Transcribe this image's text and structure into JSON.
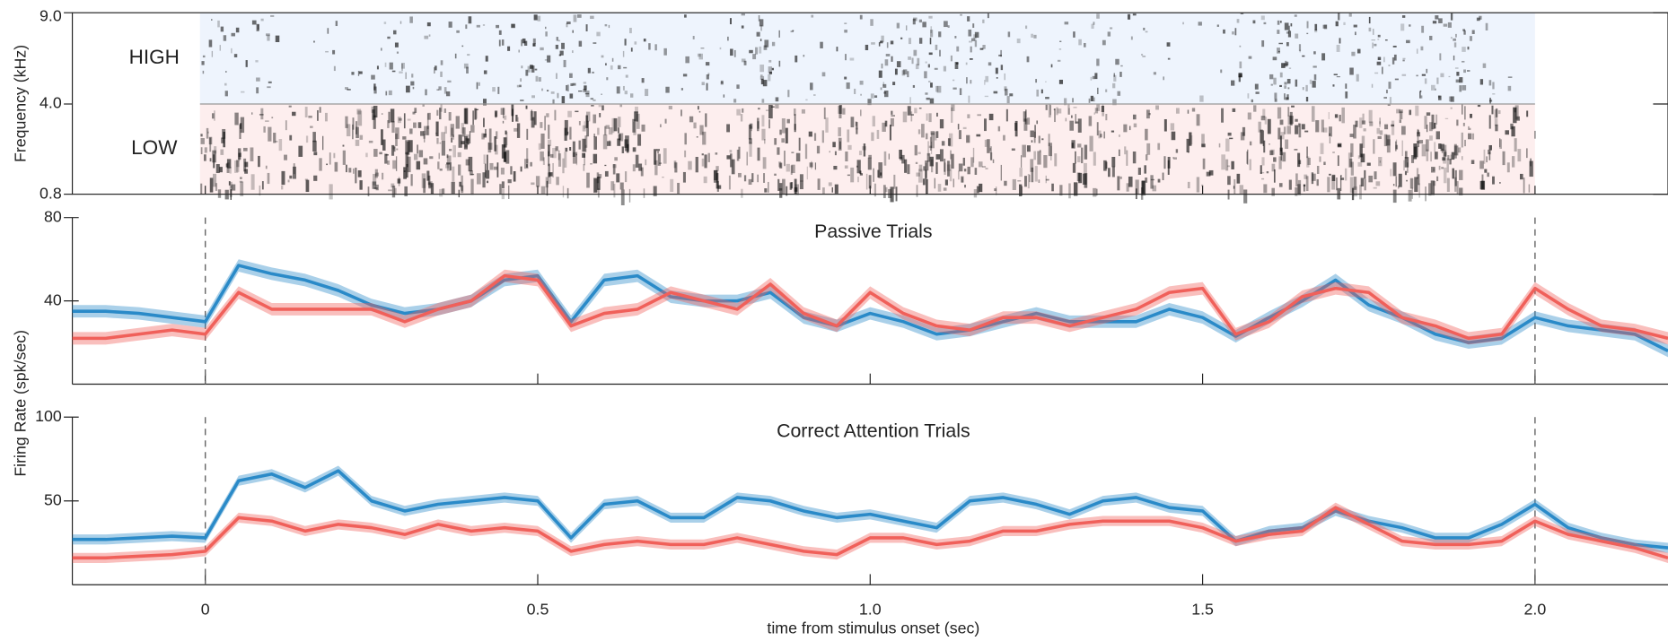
{
  "chart_data": [
    {
      "type": "spectrogram",
      "ylabel": "Frequency (kHz)",
      "yticks": [
        {
          "value": 9,
          "label": "9.0"
        },
        {
          "value": 4,
          "label": "4.0"
        },
        0.8
      ],
      "bands": [
        {
          "name": "HIGH",
          "color": "#1f6fb0",
          "fill": "#eef4fd",
          "range": [
            4,
            9
          ]
        },
        {
          "name": "LOW",
          "color": "#d9342b",
          "fill": "#fdeeee",
          "range": [
            0.8,
            4
          ]
        }
      ]
    },
    {
      "type": "line",
      "title": "Passive Trials",
      "ylim": [
        0,
        80
      ],
      "yticks": [
        80,
        40
      ],
      "series": [
        {
          "color": "#2a8ac8",
          "error": 3,
          "values": [
            35,
            35,
            34,
            32,
            30,
            57,
            53,
            50,
            45,
            38,
            34,
            36,
            40,
            50,
            52,
            30,
            50,
            52,
            42,
            40,
            40,
            44,
            32,
            28,
            34,
            30,
            24,
            26,
            30,
            34,
            30,
            30,
            30,
            36,
            32,
            23,
            32,
            40,
            50,
            38,
            32,
            24,
            20,
            22,
            32,
            28,
            26,
            24,
            16
          ]
        },
        {
          "color": "#f0605a",
          "error": 3,
          "values": [
            22,
            22,
            24,
            26,
            24,
            44,
            36,
            36,
            36,
            36,
            30,
            36,
            40,
            52,
            50,
            28,
            34,
            36,
            44,
            40,
            36,
            48,
            34,
            28,
            44,
            34,
            28,
            26,
            32,
            32,
            28,
            32,
            36,
            44,
            46,
            24,
            30,
            42,
            46,
            44,
            32,
            28,
            22,
            24,
            46,
            36,
            28,
            26,
            22
          ]
        }
      ]
    },
    {
      "type": "line",
      "title": "Correct Attention Trials",
      "ylim": [
        0,
        100
      ],
      "yticks": [
        100,
        50
      ],
      "ylabel": "Firing Rate (spk/sec)",
      "xlabel": "time from stimulus onset (sec)",
      "xlim": [
        -0.2,
        2.2
      ],
      "xticks": [
        0,
        0.5,
        {
          "value": 1,
          "label": "1.0"
        },
        1.5,
        {
          "value": 2,
          "label": "2.0"
        }
      ],
      "vlines": [
        0,
        2
      ],
      "x": [
        -0.2,
        -0.15,
        -0.1,
        -0.05,
        0,
        0.05,
        0.1,
        0.15,
        0.2,
        0.25,
        0.3,
        0.35,
        0.4,
        0.45,
        0.5,
        0.55,
        0.6,
        0.65,
        0.7,
        0.75,
        0.8,
        0.85,
        0.9,
        0.95,
        1,
        1.05,
        1.1,
        1.15,
        1.2,
        1.25,
        1.3,
        1.35,
        1.4,
        1.45,
        1.5,
        1.55,
        1.6,
        1.65,
        1.7,
        1.75,
        1.8,
        1.85,
        1.9,
        1.95,
        2,
        2.05,
        2.1,
        2.15,
        2.2
      ],
      "series": [
        {
          "color": "#2a8ac8",
          "error": 3,
          "values": [
            27,
            27,
            28,
            29,
            28,
            62,
            66,
            58,
            68,
            50,
            44,
            48,
            50,
            52,
            50,
            28,
            48,
            50,
            40,
            40,
            52,
            50,
            44,
            40,
            42,
            38,
            34,
            50,
            52,
            48,
            42,
            50,
            52,
            46,
            44,
            26,
            32,
            34,
            44,
            38,
            34,
            28,
            28,
            36,
            48,
            34,
            28,
            24,
            22
          ]
        },
        {
          "color": "#f0605a",
          "error": 3,
          "values": [
            16,
            16,
            17,
            18,
            20,
            40,
            38,
            32,
            36,
            34,
            30,
            36,
            32,
            34,
            32,
            20,
            24,
            26,
            24,
            24,
            28,
            24,
            20,
            18,
            28,
            28,
            24,
            26,
            32,
            32,
            36,
            38,
            38,
            38,
            34,
            26,
            30,
            32,
            46,
            36,
            26,
            24,
            24,
            26,
            38,
            30,
            26,
            22,
            16
          ]
        }
      ]
    }
  ]
}
